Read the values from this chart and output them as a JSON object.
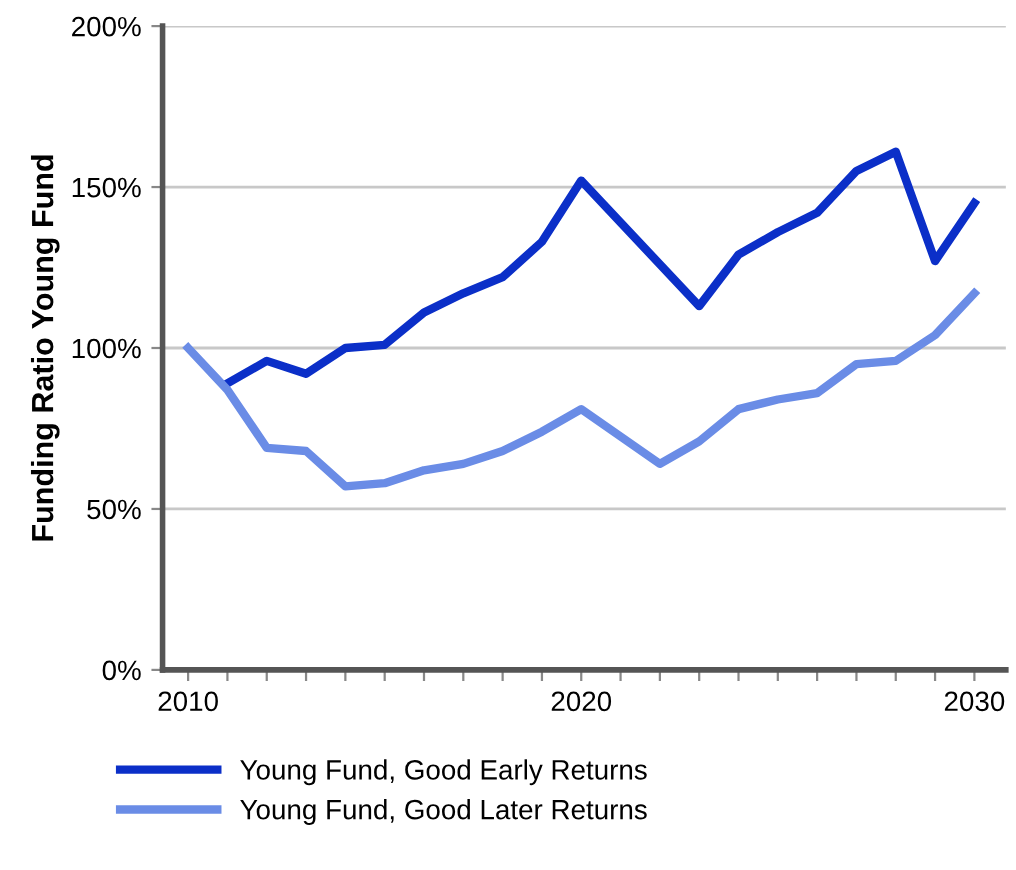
{
  "chart_data": {
    "type": "line",
    "ylabel": "Funding Ratio Young Fund",
    "series": [
      {
        "name": "Young Fund, Good Early Returns",
        "color": "#0b2fc8",
        "x": [
          2011,
          2012,
          2013,
          2014,
          2015,
          2016,
          2017,
          2018,
          2019,
          2020,
          2023,
          2024,
          2025,
          2026,
          2027,
          2028,
          2029,
          2030
        ],
        "values": [
          89,
          96,
          92,
          100,
          101,
          111,
          117,
          122,
          133,
          152,
          113,
          129,
          136,
          142,
          155,
          161,
          127,
          145
        ]
      },
      {
        "name": "Young Fund, Good Later Returns",
        "color": "#6a8ce6",
        "x": [
          2010,
          2011,
          2012,
          2013,
          2014,
          2015,
          2016,
          2017,
          2018,
          2019,
          2020,
          2022,
          2023,
          2024,
          2025,
          2026,
          2027,
          2028,
          2029,
          2030
        ],
        "values": [
          100,
          87,
          69,
          68,
          57,
          58,
          62,
          64,
          68,
          74,
          81,
          64,
          71,
          81,
          84,
          86,
          95,
          96,
          104,
          117
        ]
      }
    ],
    "xlim": [
      2009.35,
      2030.8
    ],
    "xticks": [
      2010,
      {
        "value": 2011,
        "label": null
      },
      {
        "value": 2012,
        "label": null
      },
      {
        "value": 2013,
        "label": null
      },
      {
        "value": 2014,
        "label": null
      },
      {
        "value": 2015,
        "label": null
      },
      {
        "value": 2016,
        "label": null
      },
      {
        "value": 2017,
        "label": null
      },
      {
        "value": 2018,
        "label": null
      },
      {
        "value": 2019,
        "label": null
      },
      2020,
      {
        "value": 2021,
        "label": null
      },
      {
        "value": 2022,
        "label": null
      },
      {
        "value": 2023,
        "label": null
      },
      {
        "value": 2024,
        "label": null
      },
      {
        "value": 2025,
        "label": null
      },
      {
        "value": 2026,
        "label": null
      },
      {
        "value": 2027,
        "label": null
      },
      {
        "value": 2028,
        "label": null
      },
      {
        "value": 2029,
        "label": null
      },
      2030
    ],
    "ylim": [
      0,
      200
    ],
    "yticks": [
      {
        "value": 0,
        "label": "0%"
      },
      {
        "value": 50,
        "label": "50%"
      },
      {
        "value": 100,
        "label": "100%"
      },
      {
        "value": 150,
        "label": "150%"
      },
      {
        "value": 200,
        "label": "200%"
      }
    ],
    "grid": "y",
    "legend": "bottom",
    "marker": "none",
    "line_style": "solid"
  }
}
